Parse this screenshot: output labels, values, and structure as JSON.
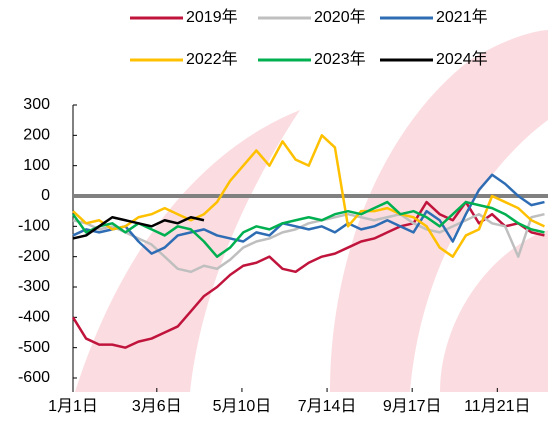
{
  "chart_data": {
    "type": "line",
    "x": [
      0,
      10,
      20,
      30,
      40,
      50,
      60,
      70,
      80,
      90,
      100,
      110,
      120,
      130,
      140,
      150,
      160,
      170,
      180,
      190,
      200,
      210,
      220,
      230,
      240,
      250,
      260,
      270,
      280,
      290,
      300,
      310,
      320,
      330,
      340,
      350,
      360
    ],
    "xlim": [
      0,
      365
    ],
    "xticks": [
      {
        "value": 0,
        "label": "1月1日"
      },
      {
        "value": 64,
        "label": "3月6日"
      },
      {
        "value": 129,
        "label": "5月10日"
      },
      {
        "value": 194,
        "label": "7月14日"
      },
      {
        "value": 259,
        "label": "9月17日"
      },
      {
        "value": 324,
        "label": "11月21日"
      }
    ],
    "ylim": [
      -600,
      300
    ],
    "yticks": [
      -600,
      -500,
      -400,
      -300,
      -200,
      -100,
      0,
      100,
      200,
      300
    ],
    "reference_line": {
      "value": 0,
      "color": "#808080"
    },
    "series": [
      {
        "name": "2019年",
        "color": "#c0143c",
        "values": [
          -400,
          -470,
          -490,
          -490,
          -500,
          -480,
          -470,
          -450,
          -430,
          -380,
          -330,
          -300,
          -260,
          -230,
          -220,
          -200,
          -240,
          -250,
          -220,
          -200,
          -190,
          -170,
          -150,
          -140,
          -120,
          -100,
          -90,
          -20,
          -60,
          -80,
          -20,
          -90,
          -60,
          -100,
          -90,
          -120,
          -130
        ]
      },
      {
        "name": "2020年",
        "color": "#bfbfbf",
        "values": [
          -80,
          -90,
          -110,
          -100,
          -120,
          -140,
          -160,
          -200,
          -240,
          -250,
          -230,
          -240,
          -210,
          -170,
          -150,
          -140,
          -120,
          -110,
          -90,
          -80,
          -70,
          -60,
          -70,
          -80,
          -70,
          -60,
          -90,
          -110,
          -120,
          -100,
          -80,
          -60,
          -90,
          -100,
          -200,
          -70,
          -60
        ]
      },
      {
        "name": "2021年",
        "color": "#2e6db4",
        "values": [
          -130,
          -110,
          -120,
          -110,
          -100,
          -150,
          -190,
          -170,
          -130,
          -120,
          -110,
          -130,
          -140,
          -150,
          -120,
          -130,
          -90,
          -100,
          -110,
          -100,
          -120,
          -90,
          -110,
          -100,
          -80,
          -100,
          -120,
          -50,
          -80,
          -150,
          -60,
          20,
          70,
          40,
          0,
          -30,
          -20
        ]
      },
      {
        "name": "2022年",
        "color": "#ffc000",
        "values": [
          -50,
          -90,
          -80,
          -110,
          -100,
          -70,
          -60,
          -40,
          -60,
          -80,
          -60,
          -20,
          50,
          100,
          150,
          100,
          180,
          120,
          100,
          200,
          160,
          -100,
          -50,
          -50,
          -40,
          -60,
          -70,
          -100,
          -170,
          -200,
          -130,
          -110,
          0,
          -20,
          -40,
          -80,
          -100
        ]
      },
      {
        "name": "2023年",
        "color": "#00b050",
        "values": [
          -60,
          -120,
          -100,
          -90,
          -120,
          -90,
          -110,
          -130,
          -100,
          -110,
          -150,
          -200,
          -170,
          -120,
          -100,
          -110,
          -90,
          -80,
          -70,
          -80,
          -60,
          -50,
          -60,
          -40,
          -20,
          -60,
          -50,
          -70,
          -100,
          -60,
          -20,
          -30,
          -40,
          -60,
          -90,
          -110,
          -120
        ]
      },
      {
        "name": "2024年",
        "color": "#000000",
        "values": [
          -140,
          -130,
          -100,
          -70,
          -80,
          -90,
          -100,
          -80,
          -90,
          -70,
          -80,
          null,
          null,
          null,
          null,
          null,
          null,
          null,
          null,
          null,
          null,
          null,
          null,
          null,
          null,
          null,
          null,
          null,
          null,
          null,
          null,
          null,
          null,
          null,
          null,
          null,
          null
        ]
      }
    ]
  }
}
